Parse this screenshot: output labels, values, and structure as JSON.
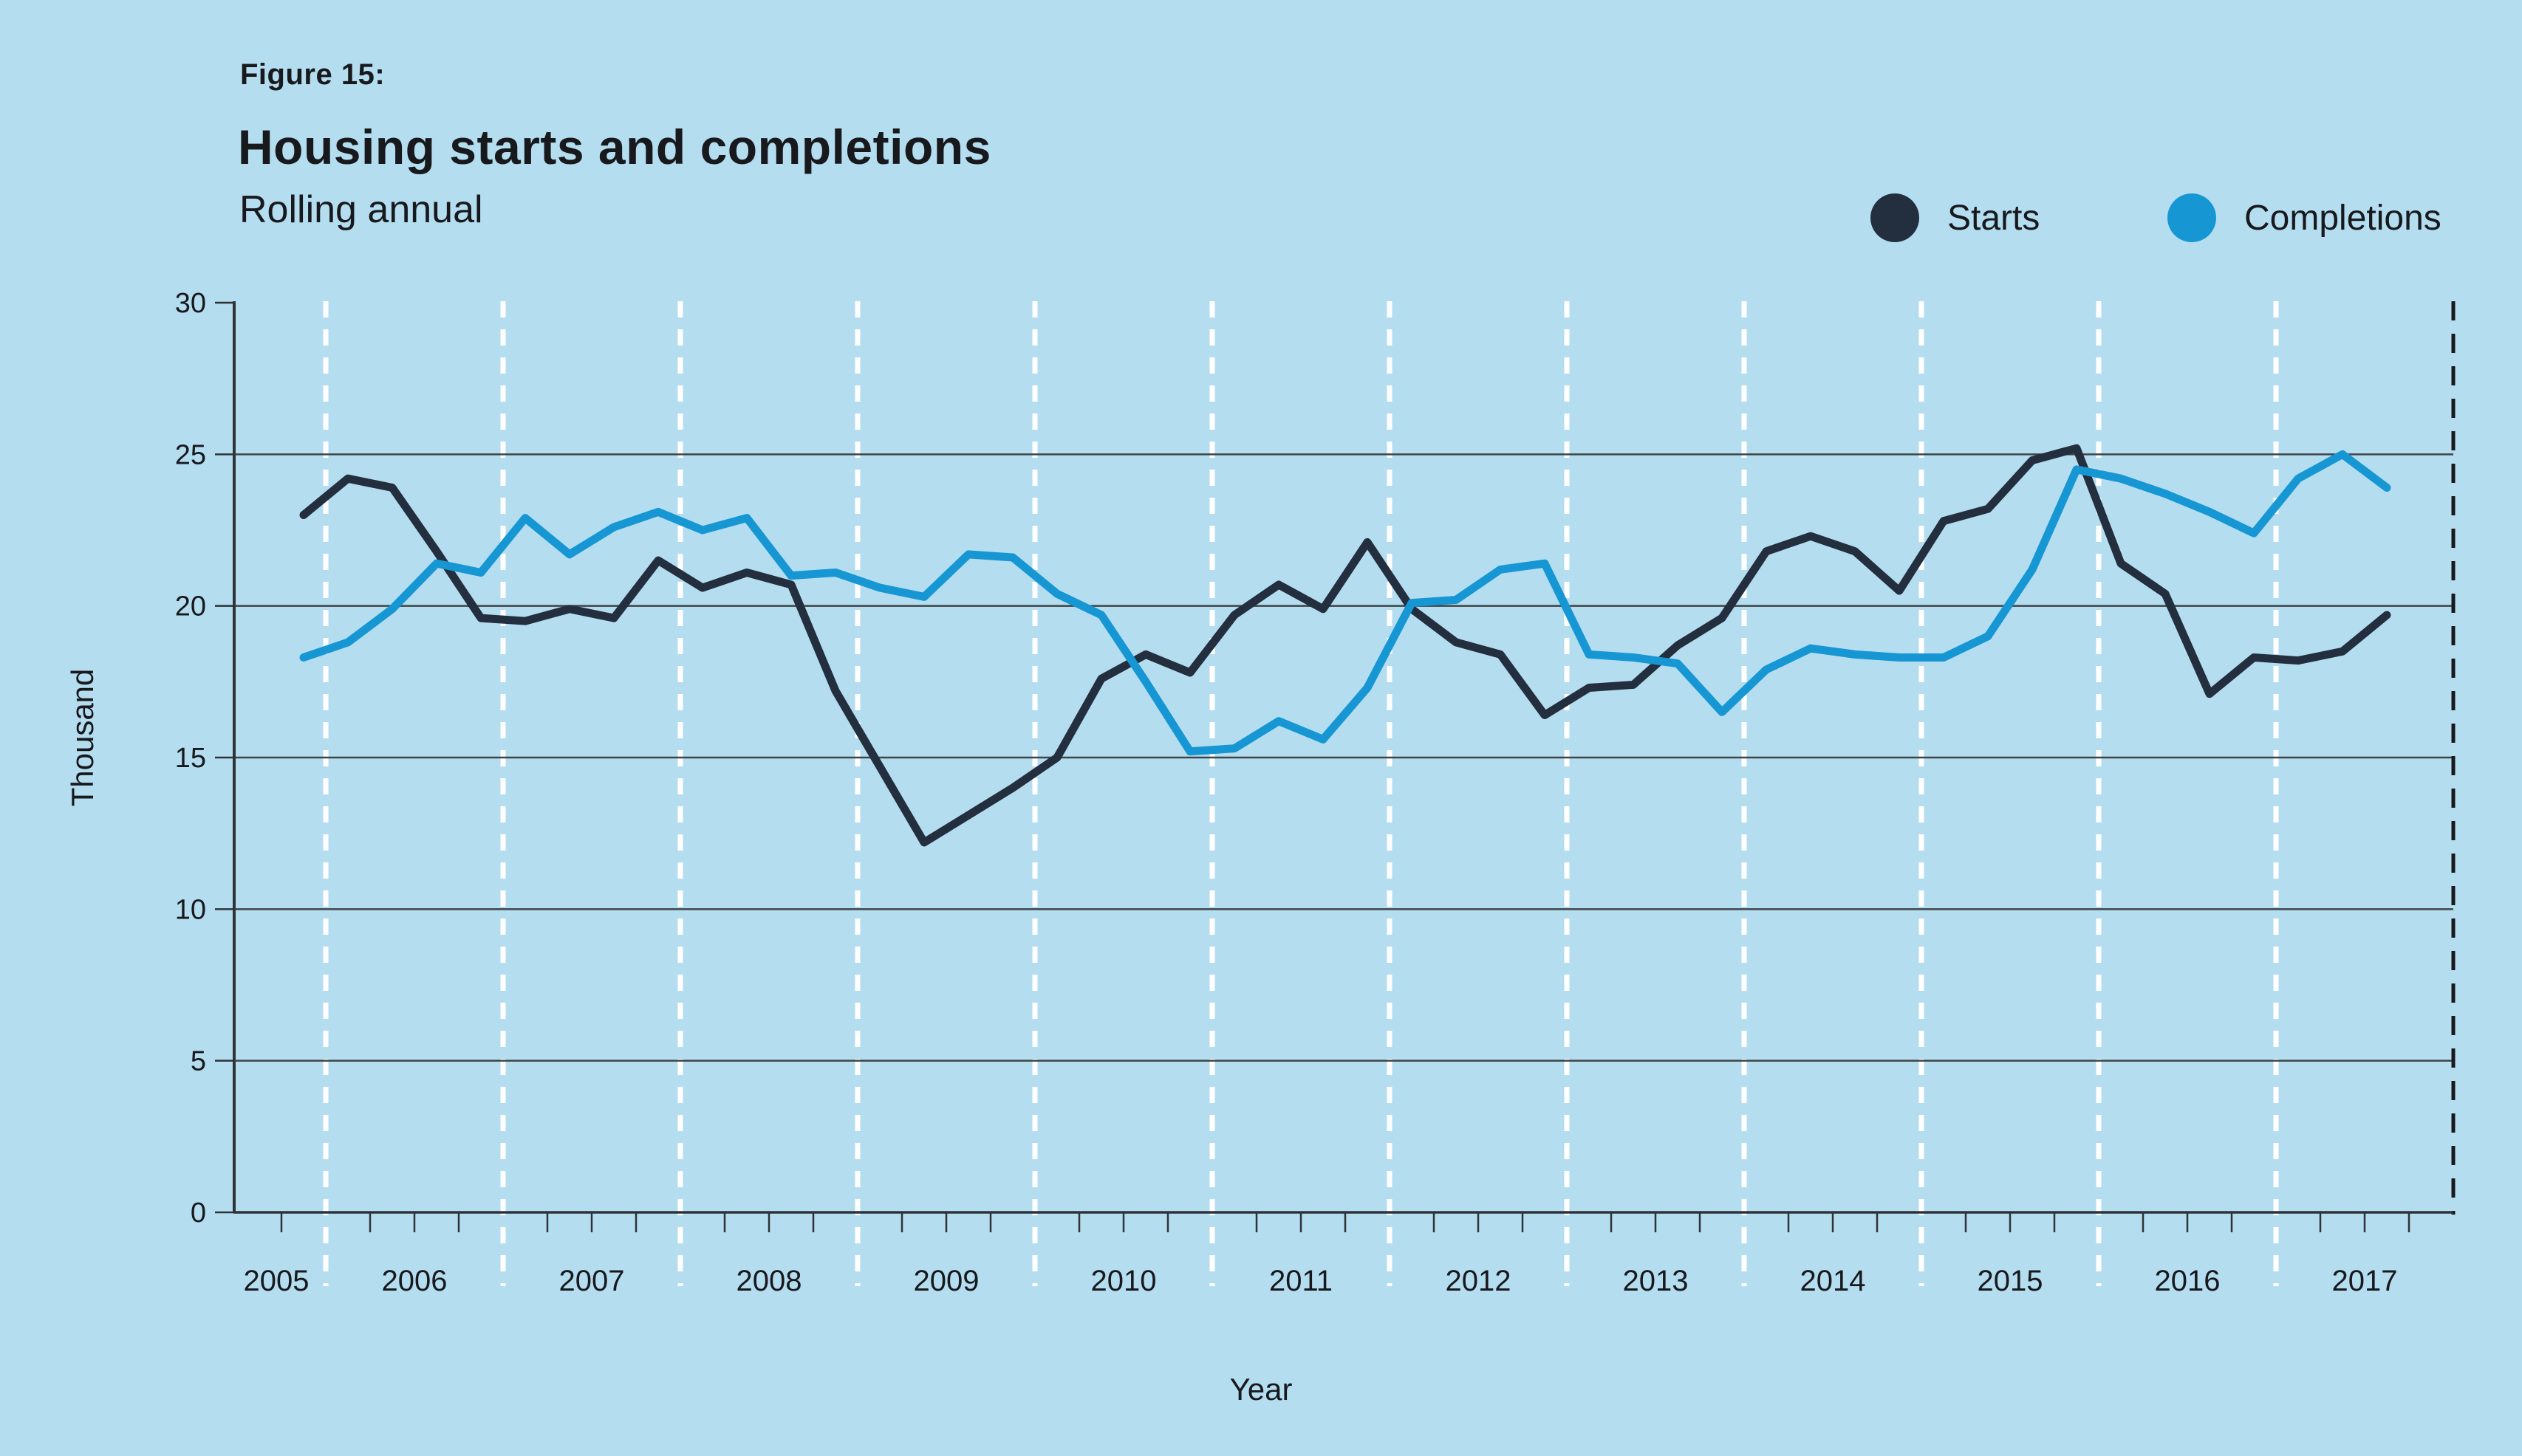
{
  "figure": {
    "label": "Figure 15:",
    "title": "Housing starts and completions",
    "subtitle": "Rolling annual"
  },
  "legend": {
    "items": [
      {
        "label": "Starts",
        "color": "#232e3f"
      },
      {
        "label": "Completions",
        "color": "#1697d3"
      }
    ]
  },
  "chart_data": {
    "type": "line",
    "title": "Housing starts and completions",
    "subtitle": "Rolling annual",
    "xlabel": "Year",
    "ylabel": "Thousand",
    "ylim": [
      0,
      30
    ],
    "y_ticks": [
      0,
      5,
      10,
      15,
      20,
      25,
      30
    ],
    "x_year_labels": [
      "2005",
      "2006",
      "2007",
      "2008",
      "2009",
      "2010",
      "2011",
      "2012",
      "2013",
      "2014",
      "2015",
      "2016",
      "2017"
    ],
    "frequency": "quarterly",
    "grid": {
      "horizontal_gridlines": true,
      "vertical_year_dashes": true,
      "legend_position": "top-right"
    },
    "series": [
      {
        "name": "Starts",
        "color": "#232e3f",
        "values": [
          23.0,
          24.2,
          23.9,
          21.8,
          19.6,
          19.5,
          19.9,
          19.6,
          21.5,
          20.6,
          21.1,
          20.7,
          17.2,
          14.7,
          12.2,
          13.1,
          14.0,
          15.0,
          17.6,
          18.4,
          17.8,
          19.7,
          20.7,
          19.9,
          22.1,
          19.9,
          18.8,
          18.4,
          16.4,
          17.3,
          17.4,
          18.7,
          19.6,
          21.8,
          22.3,
          21.8,
          20.5,
          22.8,
          23.2,
          24.8,
          25.2,
          21.4,
          20.4,
          17.1,
          18.3,
          18.2,
          18.5,
          19.7
        ]
      },
      {
        "name": "Completions",
        "color": "#1697d3",
        "values": [
          18.3,
          18.8,
          19.9,
          21.4,
          21.1,
          22.9,
          21.7,
          22.6,
          23.1,
          22.5,
          22.9,
          21.0,
          21.1,
          20.6,
          20.3,
          21.7,
          21.6,
          20.4,
          19.7,
          17.5,
          15.2,
          15.3,
          16.2,
          15.6,
          17.3,
          20.1,
          20.2,
          21.2,
          21.4,
          18.4,
          18.3,
          18.1,
          16.5,
          17.9,
          18.6,
          18.4,
          18.3,
          18.3,
          19.0,
          21.2,
          24.5,
          24.2,
          23.7,
          23.1,
          22.4,
          24.2,
          25.0,
          23.9
        ]
      }
    ]
  },
  "colors": {
    "background": "#b5ddf0",
    "gridline": "#3f4447",
    "axis": "#2e3338",
    "year_dash": "#ffffff",
    "right_border_dash": "#17191d",
    "text": "#17191d"
  }
}
